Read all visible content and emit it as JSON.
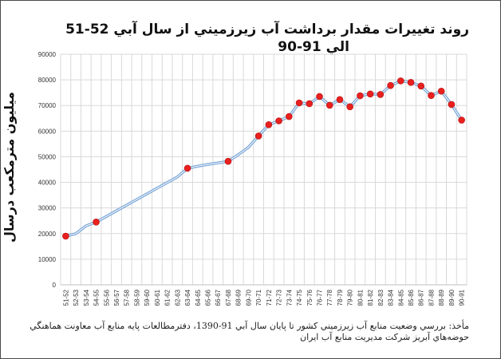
{
  "page": {
    "title_line1": "روند تغييرات مقدار برداشت آب زيرزميني از سال آبي 52-51",
    "title_line2": "الي 91-90",
    "ylabel": "ميليون مترمکعب درسال",
    "source_line1": "مأخذ: بررسي وضعيت منابع آب زيرزميني کشور تا پايان سال آبي 91-1390، دفترمطالعات پايه منابع آب معاونت هماهنگي",
    "source_line2": "حوضه‌هاي آبريز شرکت مديريت منابع آب ايران"
  },
  "chart_data": {
    "type": "line",
    "title": "روند تغييرات مقدار برداشت آب زيرزميني از سال آبي 52-51 الي 91-90",
    "ylabel": "ميليون مترمکعب درسال",
    "xlabel": "",
    "ylim": [
      0,
      90000
    ],
    "yticks": [
      0,
      10000,
      20000,
      30000,
      40000,
      50000,
      60000,
      70000,
      80000,
      90000
    ],
    "grid": true,
    "legend": "none",
    "colors": {
      "line": "#7aa6d6",
      "line_core": "#ffffff",
      "marker": "#e8201e",
      "grid": "#d9d9d9"
    },
    "categories": [
      "51-52",
      "52-53",
      "53-54",
      "54-55",
      "55-56",
      "56-57",
      "57-58",
      "58-59",
      "59-60",
      "60-61",
      "61-62",
      "62-63",
      "63-64",
      "64-65",
      "65-66",
      "66-67",
      "67-68",
      "68-69",
      "69-70",
      "70-71",
      "71-72",
      "72-73",
      "73-74",
      "74-75",
      "75-76",
      "76-77",
      "77-78",
      "78-79",
      "79-80",
      "80-81",
      "81-82",
      "82-83",
      "83-84",
      "84-85",
      "85-86",
      "86-87",
      "87-88",
      "88-89",
      "89-90",
      "90-91"
    ],
    "values": [
      19000,
      20000,
      23000,
      24500,
      26700,
      28900,
      31100,
      33300,
      35500,
      37700,
      39900,
      42100,
      45500,
      46300,
      47000,
      47600,
      48200,
      50800,
      53700,
      58100,
      62500,
      64000,
      65700,
      71000,
      70700,
      73500,
      70100,
      72300,
      69500,
      73800,
      74500,
      74300,
      77800,
      79600,
      79000,
      77600,
      73900,
      75600,
      70400,
      64300
    ],
    "markers": [
      "51-52",
      "54-55",
      "63-64",
      "67-68",
      "70-71",
      "71-72",
      "72-73",
      "73-74",
      "74-75",
      "75-76",
      "76-77",
      "77-78",
      "78-79",
      "79-80",
      "80-81",
      "81-82",
      "82-83",
      "83-84",
      "84-85",
      "85-86",
      "86-87",
      "87-88",
      "88-89",
      "89-90",
      "90-91"
    ]
  }
}
